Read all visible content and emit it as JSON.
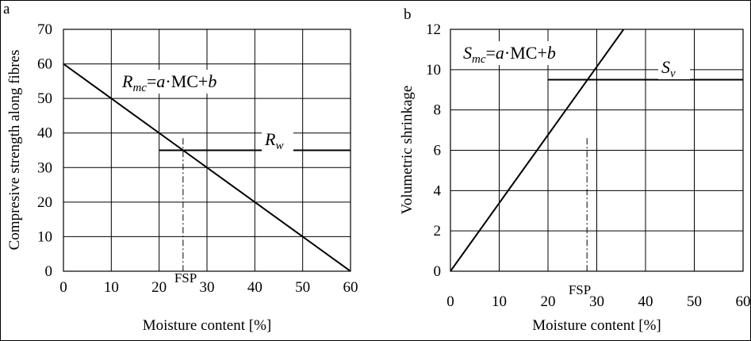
{
  "chart_data": [
    {
      "type": "line",
      "panel_label": "a",
      "xlabel": "Moisture content [%]",
      "ylabel": "Compresive strength along fibres",
      "xlim": [
        0,
        60
      ],
      "ylim": [
        0,
        70
      ],
      "xticks": [
        0,
        10,
        20,
        30,
        40,
        50,
        60
      ],
      "yticks": [
        0,
        10,
        20,
        30,
        40,
        50,
        60,
        70
      ],
      "grid": true,
      "series": [
        {
          "name": "R_mc",
          "x": [
            0,
            60
          ],
          "y": [
            60,
            0
          ]
        },
        {
          "name": "R_w",
          "x": [
            20,
            60
          ],
          "y": [
            35,
            35
          ]
        }
      ],
      "fsp": {
        "label": "FSP",
        "x": 25
      },
      "annotations": {
        "formula": {
          "symbol": "R",
          "sub": "mc",
          "rhs_a": "a",
          "rhs_mid": "·MC+",
          "rhs_b": "b"
        },
        "level": {
          "symbol": "R",
          "sub": "w"
        }
      }
    },
    {
      "type": "line",
      "panel_label": "b",
      "xlabel": "Moisture content [%]",
      "ylabel": "Volumetric shrinkage",
      "xlim": [
        0,
        60
      ],
      "ylim": [
        0,
        12
      ],
      "xticks": [
        0,
        10,
        20,
        30,
        40,
        50,
        60
      ],
      "yticks": [
        0,
        2,
        4,
        6,
        8,
        10,
        12
      ],
      "grid": true,
      "series": [
        {
          "name": "S_mc",
          "x": [
            0,
            35.5
          ],
          "y": [
            0,
            12
          ]
        },
        {
          "name": "S_v",
          "x": [
            20,
            60
          ],
          "y": [
            9.5,
            9.5
          ]
        }
      ],
      "fsp": {
        "label": "FSP",
        "x": 28
      },
      "annotations": {
        "formula": {
          "symbol": "S",
          "sub": "mc",
          "rhs_a": "a",
          "rhs_mid": "·MC+",
          "rhs_b": "b"
        },
        "level": {
          "symbol": "S",
          "sub": "v"
        }
      }
    }
  ]
}
